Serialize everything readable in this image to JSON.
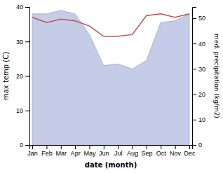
{
  "chart_data": {
    "type": "line",
    "categories": [
      "Jan",
      "Feb",
      "Mar",
      "Apr",
      "May",
      "Jun",
      "Jul",
      "Aug",
      "Sep",
      "Oct",
      "Nov",
      "Dec"
    ],
    "series": [
      {
        "type": "area",
        "color": "#c5cce8",
        "values": [
          38.0,
          38.0,
          39.0,
          38.0,
          32.0,
          23.0,
          23.5,
          22.0,
          24.5,
          35.5,
          36.0,
          38.0
        ]
      },
      {
        "type": "line",
        "color": "#c0504d",
        "values": [
          37.0,
          35.5,
          36.5,
          36.0,
          34.5,
          31.5,
          31.5,
          32.0,
          37.5,
          38.0,
          37.0,
          38.0
        ]
      }
    ],
    "xlabel": "date (month)",
    "ylabel": "max temp (C)",
    "y2label": "med. precipitation (kg/m2)",
    "ylim": [
      0,
      40
    ],
    "yticks": [
      0,
      10,
      20,
      30,
      40
    ],
    "y2lim": [
      0,
      54.4
    ],
    "y2ticks": [
      0,
      10,
      20,
      30,
      40,
      50
    ],
    "grid": false
  }
}
